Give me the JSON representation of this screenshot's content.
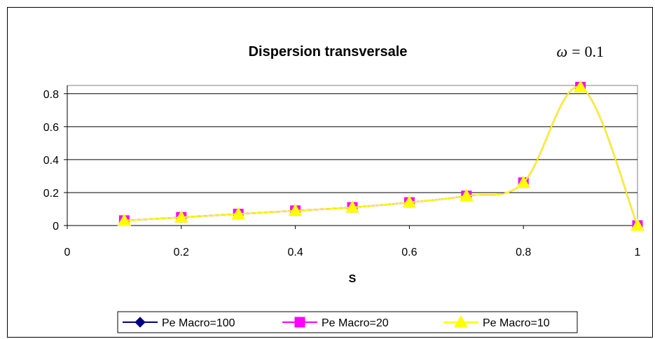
{
  "chart_data": {
    "type": "line",
    "title": "Dispersion transversale",
    "annotation": {
      "symbol": "ω",
      "operator": "=",
      "value": "0.1"
    },
    "xlabel": "S",
    "ylabel": "",
    "xlim": [
      0,
      1
    ],
    "ylim": [
      0,
      0.85
    ],
    "xticks": [
      "0",
      "0.2",
      "0.4",
      "0.6",
      "0.8",
      "1"
    ],
    "xtick_values": [
      0,
      0.2,
      0.4,
      0.6,
      0.8,
      1
    ],
    "yticks": [
      "0",
      "0.2",
      "0.4",
      "0.6",
      "0.8"
    ],
    "ytick_values": [
      0,
      0.2,
      0.4,
      0.6,
      0.8
    ],
    "grid": "horizontal",
    "legend": "bottom",
    "x": [
      0.1,
      0.2,
      0.3,
      0.4,
      0.5,
      0.6,
      0.7,
      0.8,
      0.9,
      1.0
    ],
    "series": [
      {
        "name": "Pe Macro=100",
        "color": "#000080",
        "marker": "diamond",
        "values": [
          0.03,
          0.05,
          0.07,
          0.09,
          0.11,
          0.14,
          0.18,
          0.26,
          0.84,
          0.0
        ]
      },
      {
        "name": "Pe Macro=20",
        "color": "#ff00ff",
        "marker": "square",
        "values": [
          0.03,
          0.05,
          0.07,
          0.09,
          0.11,
          0.14,
          0.18,
          0.26,
          0.84,
          0.0
        ]
      },
      {
        "name": "Pe Macro=10",
        "color": "#ffff00",
        "marker": "triangle",
        "values": [
          0.03,
          0.05,
          0.07,
          0.09,
          0.11,
          0.14,
          0.18,
          0.26,
          0.84,
          0.0
        ]
      }
    ]
  }
}
